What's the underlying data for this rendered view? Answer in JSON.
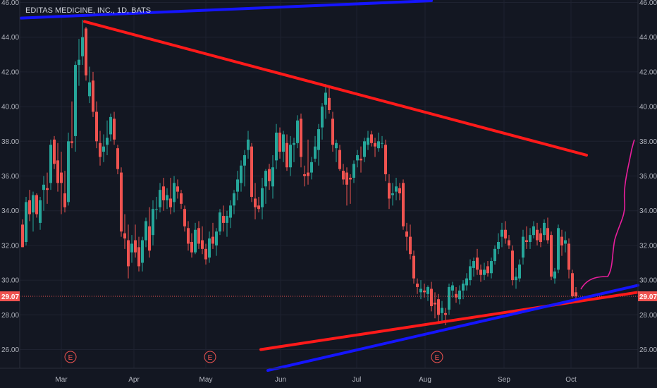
{
  "chart_data": {
    "type": "candlestick",
    "title": "EDITAS MEDICINE, INC., 1D, BATS",
    "y_ticks": [
      "26.00",
      "28.00",
      "30.00",
      "32.00",
      "34.00",
      "36.00",
      "38.00",
      "40.00",
      "42.00",
      "44.00",
      "46.00"
    ],
    "ylim": [
      25.0,
      46.0
    ],
    "x_ticks": [
      "Mar",
      "Apr",
      "May",
      "Jun",
      "Jul",
      "Aug",
      "Sep",
      "Oct"
    ],
    "last_price": "29.07",
    "colors": {
      "background": "#131722",
      "up": "#26a69a",
      "down": "#ef5350",
      "grid": "#1e2230",
      "axis_text": "#b2b5be",
      "price_line": "#ef5350",
      "trend_red": "#ff1a1a",
      "trend_blue": "#1515ff",
      "annotation": "#e91e9c"
    },
    "events": [
      {
        "label": "E",
        "x": 100
      },
      {
        "label": "E",
        "x": 298
      },
      {
        "label": "E",
        "x": 620
      }
    ],
    "trendlines": [
      {
        "name": "resistance",
        "color": "red",
        "from": [
          120,
          44.9
        ],
        "to": [
          832,
          37.2
        ]
      },
      {
        "name": "support",
        "color": "red",
        "from": [
          370,
          26.0
        ],
        "to": [
          905,
          29.3
        ]
      },
      {
        "name": "blue-upper",
        "color": "blue",
        "from": [
          30,
          45.1
        ],
        "to": [
          612,
          46.1
        ]
      },
      {
        "name": "blue-lower",
        "color": "blue",
        "from": [
          380,
          24.8
        ],
        "to": [
          905,
          29.7
        ]
      }
    ],
    "candles": [
      [
        32,
        33.2,
        33.5,
        31.9,
        31.9
      ],
      [
        37,
        32.2,
        34.8,
        32.0,
        34.5
      ],
      [
        42,
        34.6,
        35.2,
        33.4,
        33.8
      ],
      [
        47,
        33.9,
        35.1,
        32.8,
        34.9
      ],
      [
        52,
        34.9,
        35.0,
        33.6,
        33.8
      ],
      [
        57,
        33.3,
        34.8,
        32.9,
        34.6
      ],
      [
        62,
        35.2,
        36.0,
        34.0,
        35.5
      ],
      [
        67,
        35.3,
        36.2,
        34.4,
        35.2
      ],
      [
        72,
        35.6,
        38.1,
        35.2,
        37.8
      ],
      [
        77,
        38.1,
        38.3,
        36.4,
        36.7
      ],
      [
        82,
        36.9,
        37.9,
        35.1,
        35.6
      ],
      [
        87,
        36.2,
        37.4,
        33.8,
        35.6
      ],
      [
        92,
        35.0,
        36.3,
        33.9,
        34.2
      ],
      [
        97,
        34.5,
        38.5,
        34.3,
        38.0
      ],
      [
        102,
        38.0,
        40.3,
        37.6,
        37.9
      ],
      [
        107,
        38.3,
        42.6,
        37.4,
        42.4
      ],
      [
        112,
        42.4,
        43.9,
        41.2,
        42.7
      ],
      [
        117,
        42.9,
        45.0,
        42.4,
        44.0
      ],
      [
        122,
        44.5,
        44.6,
        41.5,
        41.8
      ],
      [
        127,
        40.6,
        42.3,
        40.2,
        41.4
      ],
      [
        132,
        41.5,
        42.0,
        39.4,
        39.7
      ],
      [
        137,
        39.7,
        40.3,
        37.6,
        38.0
      ],
      [
        142,
        37.9,
        38.6,
        36.6,
        37.1
      ],
      [
        147,
        37.4,
        38.4,
        36.8,
        37.7
      ],
      [
        152,
        37.8,
        39.2,
        37.2,
        38.2
      ],
      [
        157,
        38.4,
        39.6,
        38.0,
        39.4
      ],
      [
        162,
        39.3,
        39.7,
        37.8,
        38.1
      ],
      [
        167,
        37.6,
        37.8,
        36.1,
        36.4
      ],
      [
        172,
        36.2,
        36.5,
        32.5,
        32.8
      ],
      [
        177,
        32.7,
        33.8,
        31.8,
        32.4
      ],
      [
        182,
        32.3,
        33.2,
        30.1,
        30.8
      ],
      [
        187,
        31.6,
        32.6,
        31.0,
        32.1
      ],
      [
        192,
        32.3,
        33.2,
        31.3,
        31.6
      ],
      [
        197,
        31.9,
        32.5,
        30.5,
        30.8
      ],
      [
        202,
        31.0,
        32.5,
        30.5,
        32.3
      ],
      [
        207,
        32.3,
        33.6,
        31.9,
        33.4
      ],
      [
        212,
        33.1,
        34.2,
        31.3,
        31.7
      ],
      [
        217,
        32.6,
        34.6,
        32.0,
        34.1
      ],
      [
        222,
        34.1,
        34.8,
        33.5,
        34.1
      ],
      [
        227,
        34.2,
        35.6,
        33.9,
        35.2
      ],
      [
        232,
        35.4,
        35.9,
        34.0,
        34.6
      ],
      [
        237,
        34.6,
        35.3,
        34.1,
        34.9
      ],
      [
        242,
        34.7,
        35.9,
        33.8,
        34.2
      ],
      [
        247,
        34.5,
        36.0,
        33.9,
        35.6
      ],
      [
        252,
        35.4,
        35.8,
        34.7,
        35.1
      ],
      [
        257,
        35.0,
        35.2,
        34.1,
        34.4
      ],
      [
        262,
        34.1,
        34.3,
        32.8,
        33.1
      ],
      [
        267,
        33.0,
        33.4,
        31.7,
        32.1
      ],
      [
        272,
        32.2,
        32.7,
        31.3,
        31.6
      ],
      [
        277,
        31.6,
        33.3,
        31.5,
        32.9
      ],
      [
        282,
        33.0,
        33.4,
        31.8,
        32.1
      ],
      [
        287,
        32.3,
        33.1,
        31.5,
        31.8
      ],
      [
        292,
        31.8,
        32.1,
        30.9,
        31.2
      ],
      [
        297,
        31.3,
        32.8,
        31.0,
        32.4
      ],
      [
        302,
        32.5,
        33.3,
        31.8,
        32.1
      ],
      [
        307,
        32.0,
        33.0,
        31.4,
        32.8
      ],
      [
        312,
        32.8,
        34.1,
        32.6,
        33.9
      ],
      [
        317,
        33.7,
        34.3,
        32.8,
        33.3
      ],
      [
        322,
        33.3,
        34.0,
        32.5,
        33.7
      ],
      [
        327,
        33.6,
        34.6,
        33.0,
        34.3
      ],
      [
        332,
        34.3,
        35.2,
        33.8,
        35.0
      ],
      [
        337,
        35.1,
        36.3,
        34.6,
        35.8
      ],
      [
        342,
        35.6,
        36.9,
        35.1,
        36.6
      ],
      [
        347,
        36.6,
        37.5,
        35.4,
        37.2
      ],
      [
        352,
        37.5,
        38.6,
        37.0,
        38.1
      ],
      [
        357,
        37.7,
        37.9,
        34.5,
        34.8
      ],
      [
        362,
        34.7,
        35.6,
        33.5,
        34.2
      ],
      [
        367,
        34.3,
        34.8,
        33.9,
        34.1
      ],
      [
        372,
        34.2,
        35.9,
        33.5,
        35.3
      ],
      [
        377,
        35.4,
        36.4,
        34.4,
        36.3
      ],
      [
        382,
        36.4,
        36.7,
        35.2,
        35.7
      ],
      [
        387,
        35.4,
        37.2,
        34.7,
        36.5
      ],
      [
        392,
        36.9,
        39.0,
        36.4,
        38.5
      ],
      [
        397,
        38.5,
        38.8,
        37.0,
        37.4
      ],
      [
        402,
        37.4,
        38.6,
        36.8,
        38.4
      ],
      [
        407,
        37.9,
        38.4,
        36.3,
        36.5
      ],
      [
        412,
        36.5,
        38.3,
        36.0,
        37.8
      ],
      [
        417,
        37.8,
        38.2,
        36.8,
        37.9
      ],
      [
        422,
        37.9,
        39.5,
        37.6,
        39.2
      ],
      [
        427,
        39.3,
        39.6,
        36.5,
        37.1
      ],
      [
        432,
        36.1,
        36.6,
        35.4,
        36.0
      ],
      [
        437,
        36.2,
        38.1,
        35.5,
        36.0
      ],
      [
        442,
        36.2,
        37.1,
        35.8,
        36.8
      ],
      [
        447,
        37.0,
        38.3,
        36.8,
        37.7
      ],
      [
        452,
        37.5,
        39.0,
        36.6,
        38.7
      ],
      [
        457,
        38.8,
        40.2,
        38.1,
        40.0
      ],
      [
        462,
        40.1,
        41.3,
        39.3,
        40.8
      ],
      [
        467,
        40.5,
        41.2,
        39.6,
        39.8
      ],
      [
        472,
        39.3,
        39.7,
        37.4,
        37.8
      ],
      [
        477,
        37.6,
        38.1,
        36.8,
        37.9
      ],
      [
        482,
        37.5,
        37.8,
        36.3,
        36.4
      ],
      [
        487,
        36.3,
        36.7,
        35.5,
        35.8
      ],
      [
        492,
        36.2,
        36.5,
        34.3,
        35.5
      ],
      [
        497,
        35.9,
        36.1,
        34.4,
        35.8
      ],
      [
        502,
        35.9,
        36.9,
        35.6,
        36.7
      ],
      [
        507,
        36.9,
        37.5,
        36.5,
        37.2
      ],
      [
        512,
        37.0,
        37.7,
        36.2,
        36.9
      ],
      [
        517,
        37.1,
        38.2,
        36.8,
        38.0
      ],
      [
        522,
        37.8,
        38.6,
        37.5,
        38.2
      ],
      [
        527,
        38.4,
        38.6,
        37.7,
        37.9
      ],
      [
        532,
        37.9,
        38.2,
        37.1,
        37.7
      ],
      [
        537,
        37.6,
        38.5,
        37.4,
        38.0
      ],
      [
        542,
        37.9,
        38.3,
        37.6,
        37.9
      ],
      [
        547,
        37.8,
        38.1,
        35.7,
        36.1
      ],
      [
        552,
        35.6,
        36.1,
        34.1,
        34.7
      ],
      [
        557,
        34.9,
        35.6,
        34.3,
        35.0
      ],
      [
        562,
        35.1,
        35.9,
        34.6,
        35.4
      ],
      [
        567,
        35.3,
        35.6,
        34.6,
        35.0
      ],
      [
        572,
        35.6,
        35.8,
        32.9,
        33.1
      ],
      [
        577,
        32.8,
        33.3,
        31.7,
        32.5
      ],
      [
        582,
        32.5,
        33.2,
        31.2,
        31.5
      ],
      [
        587,
        31.4,
        31.7,
        29.8,
        30.1
      ],
      [
        592,
        29.8,
        30.1,
        29.2,
        29.6
      ],
      [
        597,
        29.3,
        30.0,
        28.9,
        29.5
      ],
      [
        602,
        29.4,
        29.8,
        29.0,
        29.3
      ],
      [
        607,
        29.2,
        29.7,
        28.8,
        29.6
      ],
      [
        612,
        29.5,
        29.9,
        28.2,
        28.5
      ],
      [
        617,
        28.7,
        29.3,
        27.8,
        28.6
      ],
      [
        622,
        28.9,
        29.2,
        27.6,
        28.0
      ],
      [
        627,
        28.1,
        28.8,
        27.5,
        28.4
      ],
      [
        632,
        28.1,
        28.4,
        27.4,
        28.0
      ],
      [
        637,
        28.3,
        29.8,
        28.0,
        29.6
      ],
      [
        642,
        29.4,
        29.9,
        29.0,
        29.7
      ],
      [
        647,
        29.2,
        29.6,
        28.7,
        29.0
      ],
      [
        652,
        28.9,
        29.7,
        28.6,
        29.4
      ],
      [
        657,
        29.4,
        30.0,
        28.9,
        29.8
      ],
      [
        662,
        29.7,
        30.4,
        29.4,
        30.1
      ],
      [
        667,
        30.0,
        31.2,
        29.7,
        30.8
      ],
      [
        672,
        30.7,
        31.3,
        30.2,
        31.1
      ],
      [
        677,
        31.3,
        31.8,
        30.3,
        30.6
      ],
      [
        682,
        30.6,
        30.9,
        29.9,
        30.3
      ],
      [
        687,
        30.3,
        31.0,
        30.0,
        30.6
      ],
      [
        692,
        30.8,
        31.1,
        30.2,
        30.4
      ],
      [
        697,
        30.4,
        31.3,
        30.1,
        31.1
      ],
      [
        702,
        31.1,
        32.0,
        30.9,
        31.8
      ],
      [
        707,
        31.8,
        32.7,
        31.5,
        32.2
      ],
      [
        712,
        32.5,
        33.3,
        31.9,
        32.9
      ],
      [
        717,
        32.9,
        33.4,
        32.1,
        32.4
      ],
      [
        722,
        32.3,
        32.6,
        31.8,
        32.0
      ],
      [
        727,
        31.7,
        32.0,
        29.7,
        30.0
      ],
      [
        732,
        30.0,
        30.7,
        29.5,
        30.2
      ],
      [
        737,
        30.1,
        31.2,
        29.9,
        30.9
      ],
      [
        742,
        31.3,
        32.9,
        30.9,
        32.5
      ],
      [
        747,
        32.3,
        33.1,
        31.8,
        32.2
      ],
      [
        752,
        32.2,
        33.0,
        31.8,
        32.6
      ],
      [
        757,
        32.6,
        33.4,
        32.4,
        33.1
      ],
      [
        762,
        32.9,
        33.3,
        32.0,
        32.3
      ],
      [
        767,
        32.7,
        33.0,
        31.9,
        32.2
      ],
      [
        772,
        32.6,
        33.5,
        32.3,
        33.3
      ],
      [
        777,
        33.0,
        33.6,
        32.1,
        32.3
      ],
      [
        782,
        32.6,
        32.8,
        30.0,
        30.2
      ],
      [
        787,
        30.1,
        30.7,
        29.8,
        30.5
      ],
      [
        792,
        30.6,
        33.2,
        30.4,
        33.0
      ],
      [
        797,
        32.5,
        32.9,
        31.4,
        32.0
      ],
      [
        802,
        32.1,
        32.8,
        31.6,
        32.3
      ],
      [
        807,
        32.1,
        32.4,
        30.1,
        30.6
      ],
      [
        812,
        30.4,
        30.6,
        29.0,
        29.07
      ],
      [
        817,
        29.3,
        29.6,
        28.9,
        29.07
      ]
    ]
  },
  "annotation": "drawn-projection"
}
